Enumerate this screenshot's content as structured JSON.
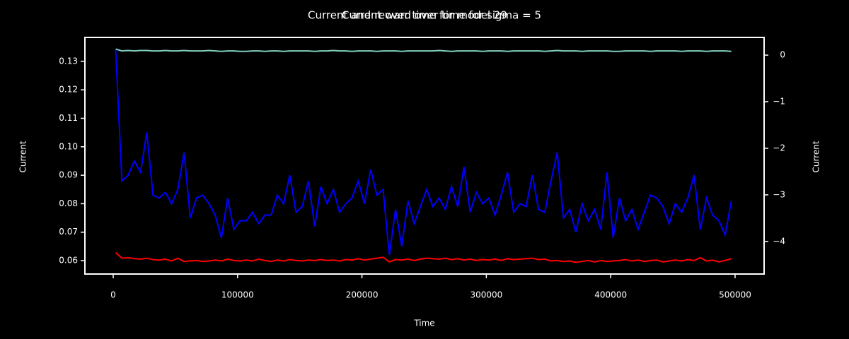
{
  "chart_data": {
    "type": "line",
    "titles": [
      "Current and reward over time for sigma = 5",
      "Current over time for model 29"
    ],
    "x_label": "Time",
    "y_label": "Current",
    "y2_label": "Current",
    "y_label_color": "#0000ff",
    "y2_label_color": "#ff0000",
    "x": [
      2000,
      7000,
      12000,
      17000,
      22000,
      27000,
      32000,
      37000,
      42000,
      47000,
      52000,
      57000,
      62000,
      67000,
      72000,
      77000,
      82000,
      87000,
      92000,
      97000,
      102000,
      107000,
      112000,
      117000,
      122000,
      127000,
      132000,
      137000,
      142000,
      147000,
      152000,
      157000,
      162000,
      167000,
      172000,
      177000,
      182000,
      187000,
      192000,
      197000,
      202000,
      207000,
      212000,
      217000,
      222000,
      227000,
      232000,
      237000,
      242000,
      247000,
      252000,
      257000,
      262000,
      267000,
      272000,
      277000,
      282000,
      287000,
      292000,
      297000,
      302000,
      307000,
      312000,
      317000,
      322000,
      327000,
      332000,
      337000,
      342000,
      347000,
      352000,
      357000,
      362000,
      367000,
      372000,
      377000,
      382000,
      387000,
      392000,
      397000,
      402000,
      407000,
      412000,
      417000,
      422000,
      427000,
      432000,
      437000,
      442000,
      447000,
      452000,
      457000,
      462000,
      467000,
      472000,
      477000,
      482000,
      487000,
      492000,
      497000
    ],
    "series": [
      {
        "color": "#0000ff",
        "axis": "y",
        "values": [
          0.134,
          0.088,
          0.09,
          0.095,
          0.091,
          0.105,
          0.083,
          0.082,
          0.084,
          0.08,
          0.085,
          0.098,
          0.075,
          0.082,
          0.083,
          0.08,
          0.076,
          0.068,
          0.082,
          0.071,
          0.074,
          0.074,
          0.077,
          0.073,
          0.076,
          0.076,
          0.083,
          0.08,
          0.09,
          0.077,
          0.079,
          0.088,
          0.072,
          0.086,
          0.08,
          0.085,
          0.077,
          0.08,
          0.082,
          0.088,
          0.08,
          0.092,
          0.083,
          0.085,
          0.062,
          0.078,
          0.065,
          0.081,
          0.073,
          0.079,
          0.085,
          0.079,
          0.082,
          0.078,
          0.086,
          0.079,
          0.093,
          0.077,
          0.084,
          0.08,
          0.082,
          0.076,
          0.083,
          0.091,
          0.077,
          0.08,
          0.079,
          0.09,
          0.078,
          0.077,
          0.088,
          0.098,
          0.075,
          0.078,
          0.07,
          0.08,
          0.074,
          0.078,
          0.071,
          0.091,
          0.068,
          0.082,
          0.074,
          0.078,
          0.071,
          0.077,
          0.083,
          0.082,
          0.079,
          0.073,
          0.08,
          0.077,
          0.082,
          0.09,
          0.071,
          0.082,
          0.076,
          0.074,
          0.069,
          0.081
        ]
      },
      {
        "color": "#7fcdbb",
        "axis": "y2",
        "values": [
          0.13,
          0.09,
          0.1,
          0.09,
          0.1,
          0.1,
          0.09,
          0.09,
          0.1,
          0.09,
          0.09,
          0.1,
          0.09,
          0.09,
          0.09,
          0.1,
          0.09,
          0.08,
          0.09,
          0.09,
          0.08,
          0.08,
          0.09,
          0.09,
          0.08,
          0.09,
          0.09,
          0.08,
          0.09,
          0.09,
          0.09,
          0.09,
          0.08,
          0.09,
          0.09,
          0.1,
          0.09,
          0.09,
          0.08,
          0.09,
          0.09,
          0.09,
          0.08,
          0.09,
          0.09,
          0.09,
          0.08,
          0.09,
          0.09,
          0.09,
          0.09,
          0.09,
          0.1,
          0.09,
          0.08,
          0.09,
          0.09,
          0.09,
          0.09,
          0.08,
          0.09,
          0.09,
          0.09,
          0.08,
          0.09,
          0.09,
          0.09,
          0.09,
          0.09,
          0.08,
          0.09,
          0.1,
          0.09,
          0.09,
          0.09,
          0.08,
          0.09,
          0.09,
          0.09,
          0.09,
          0.08,
          0.08,
          0.09,
          0.09,
          0.09,
          0.09,
          0.08,
          0.09,
          0.09,
          0.09,
          0.09,
          0.08,
          0.09,
          0.09,
          0.09,
          0.08,
          0.09,
          0.09,
          0.09,
          0.08
        ]
      },
      {
        "color": "#ff0000",
        "axis": "y2",
        "values": [
          -4.24,
          -4.36,
          -4.35,
          -4.37,
          -4.38,
          -4.36,
          -4.39,
          -4.4,
          -4.38,
          -4.42,
          -4.36,
          -4.43,
          -4.42,
          -4.41,
          -4.43,
          -4.42,
          -4.4,
          -4.42,
          -4.38,
          -4.41,
          -4.42,
          -4.4,
          -4.42,
          -4.38,
          -4.41,
          -4.43,
          -4.4,
          -4.42,
          -4.39,
          -4.41,
          -4.42,
          -4.4,
          -4.41,
          -4.39,
          -4.41,
          -4.4,
          -4.42,
          -4.39,
          -4.4,
          -4.37,
          -4.4,
          -4.38,
          -4.36,
          -4.34,
          -4.44,
          -4.39,
          -4.4,
          -4.38,
          -4.41,
          -4.38,
          -4.36,
          -4.37,
          -4.38,
          -4.36,
          -4.39,
          -4.37,
          -4.4,
          -4.38,
          -4.41,
          -4.39,
          -4.4,
          -4.38,
          -4.41,
          -4.37,
          -4.39,
          -4.38,
          -4.37,
          -4.36,
          -4.39,
          -4.38,
          -4.42,
          -4.41,
          -4.43,
          -4.42,
          -4.45,
          -4.43,
          -4.41,
          -4.44,
          -4.41,
          -4.43,
          -4.42,
          -4.41,
          -4.39,
          -4.42,
          -4.4,
          -4.43,
          -4.41,
          -4.4,
          -4.44,
          -4.42,
          -4.4,
          -4.42,
          -4.39,
          -4.41,
          -4.35,
          -4.42,
          -4.4,
          -4.44,
          -4.41,
          -4.37
        ]
      }
    ],
    "xlim": [
      -22753,
      523322
    ],
    "xticks": [
      0,
      100000,
      200000,
      300000,
      400000,
      500000
    ],
    "ylim": [
      0.0553,
      0.1384
    ],
    "yticks": [
      0.06,
      0.07,
      0.08,
      0.09,
      {
        "value": 0.1,
        "label": "0.10"
      },
      0.11,
      0.12,
      0.13
    ],
    "y2lim": [
      -4.7,
      0.38
    ],
    "y2ticks": [
      {
        "value": -4,
        "label": "−4"
      },
      {
        "value": -3,
        "label": "−3"
      },
      {
        "value": -2,
        "label": "−2"
      },
      {
        "value": -1,
        "label": "−1"
      },
      0
    ]
  }
}
